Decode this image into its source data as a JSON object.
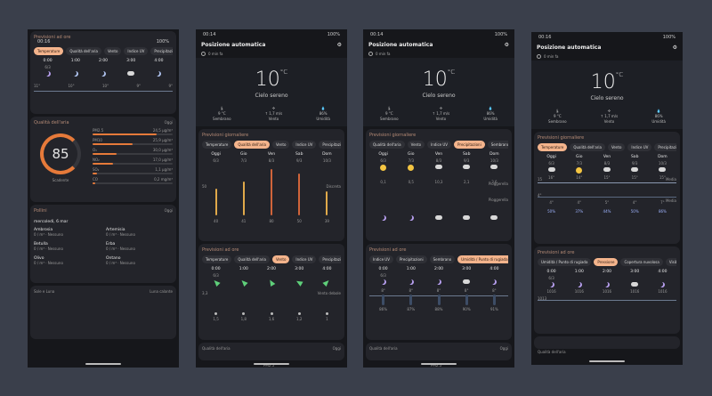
{
  "p1": {
    "status": {
      "time": "00:16",
      "battery": "100%"
    },
    "forecast_header": "Previsioni ad ore",
    "chips": [
      "Temperature",
      "Qualità dell'aria",
      "Vento",
      "Indice UV",
      "Precipitazi"
    ],
    "hours": [
      {
        "time": "0:00",
        "date": "6/3"
      },
      {
        "time": "1:00",
        "date": ""
      },
      {
        "time": "2:00",
        "date": ""
      },
      {
        "time": "3:00",
        "date": ""
      },
      {
        "time": "4:00",
        "date": ""
      }
    ],
    "temps": [
      "11°",
      "10°",
      "10°",
      "9°",
      "9°"
    ],
    "aqi_title": "Qualità dell'aria",
    "aqi_right": "Oggi",
    "aqi_value": "85",
    "aqi_label": "Scadente",
    "pollutants": [
      {
        "name": "PM2.5",
        "value": "24,5 μg/m³",
        "pct": 0.8
      },
      {
        "name": "PM10",
        "value": "25,9 μg/m³",
        "pct": 0.5
      },
      {
        "name": "O₃",
        "value": "30,0 μg/m³",
        "pct": 0.3
      },
      {
        "name": "NO₂",
        "value": "17,0 μg/m³",
        "pct": 0.25
      },
      {
        "name": "SO₂",
        "value": "1,1 μg/m³",
        "pct": 0.05
      },
      {
        "name": "CO",
        "value": "0,2 mg/m³",
        "pct": 0.03
      }
    ],
    "pollen_title": "Pollini",
    "pollen_right": "Oggi",
    "pollen_date": "mercoledì, 6 mar",
    "pollen": [
      {
        "name": "Ambrosia",
        "level": "0 / m³ · Nessuno"
      },
      {
        "name": "Artemisia",
        "level": "0 / m³ · Nessuno"
      },
      {
        "name": "Betulla",
        "level": "0 / m³ · Nessuno"
      },
      {
        "name": "Erba",
        "level": "0 / m³ · Nessuno"
      },
      {
        "name": "Olivo",
        "level": "0 / m³ · Nessuno"
      },
      {
        "name": "Ontano",
        "level": "0 / m³ · Nessuno"
      }
    ],
    "sun_title": "Sole e Luna",
    "sun_right": "Luna calante"
  },
  "p2": {
    "status": {
      "time": "00:14",
      "battery": "100%"
    },
    "location": "Posizione automatica",
    "ago": "0 min fa",
    "temp": "10",
    "unit": "°C",
    "condition": "Cielo sereno",
    "stats": [
      {
        "value": "9 °C",
        "label": "Sembrano"
      },
      {
        "value": "↑ 1,7 m/s",
        "label": "Vento"
      },
      {
        "value": "86%",
        "label": "Umidità"
      }
    ],
    "daily_header": "Previsioni giornaliere",
    "chips": [
      "Temperature",
      "Qualità dell'aria",
      "Vento",
      "Indice UV",
      "Precipitazi"
    ],
    "days": [
      {
        "d": "Oggi",
        "date": "6/3",
        "aqi": "40"
      },
      {
        "d": "Gio",
        "date": "7/3",
        "aqi": "41"
      },
      {
        "d": "Ven",
        "date": "8/3",
        "aqi": "80"
      },
      {
        "d": "Sab",
        "date": "9/3",
        "aqi": "50"
      },
      {
        "d": "Dom",
        "date": "10/3",
        "aqi": "39"
      }
    ],
    "bar_levels": [
      0.55,
      0.7,
      0.95,
      0.85,
      0.5
    ],
    "axis_left": "50",
    "axis_right": "Discreta",
    "hourly_header": "Previsioni ad ore",
    "chips2": [
      "Temperature",
      "Qualità dell'aria",
      "Vento",
      "Indice UV",
      "Precipitazi"
    ],
    "hours": [
      {
        "t": "0:00",
        "date": "6/3",
        "wind": "1,5"
      },
      {
        "t": "1:00",
        "date": "",
        "wind": "1,8"
      },
      {
        "t": "2:00",
        "date": "",
        "wind": "1,6"
      },
      {
        "t": "3:00",
        "date": "",
        "wind": "1,2"
      },
      {
        "t": "4:00",
        "date": "",
        "wind": "1"
      }
    ],
    "wind_left": "3,3",
    "wind_right": "Vento debole",
    "footer": "Qualità dell'aria",
    "footer_right": "Oggi",
    "footer_mid": "PM2.5"
  },
  "p3": {
    "status": {
      "time": "00:14",
      "battery": "100%"
    },
    "location": "Posizione automatica",
    "ago": "0 min fa",
    "temp": "10",
    "unit": "°C",
    "condition": "Cielo sereno",
    "stats": [
      {
        "value": "9 °C",
        "label": "Sembrano"
      },
      {
        "value": "↑ 1,7 m/s",
        "label": "Vento"
      },
      {
        "value": "86%",
        "label": "Umidità"
      }
    ],
    "daily_header": "Previsioni giornaliere",
    "chips": [
      "Qualità dell'aria",
      "Vento",
      "Indice UV",
      "Precipitazioni",
      "Sembrano"
    ],
    "days": [
      {
        "d": "Oggi",
        "date": "6/3",
        "mm": "0,1"
      },
      {
        "d": "Gio",
        "date": "7/3",
        "mm": "0,5"
      },
      {
        "d": "Ven",
        "date": "8/3",
        "mm": "10,3"
      },
      {
        "d": "Sab",
        "date": "9/3",
        "mm": "2,1"
      },
      {
        "d": "Dom",
        "date": "10/3",
        "mm": "3,6"
      }
    ],
    "rain_right_top": "Pioggerella",
    "rain_right_bottom": "Pioggerella",
    "hourly_header": "Previsioni ad ore",
    "chips2": [
      "Indice UV",
      "Precipitazioni",
      "Sembrano",
      "Umidità / Punto di rugiada"
    ],
    "hours": [
      {
        "t": "0:00",
        "date": "6/3",
        "hum": "86%",
        "dew": "8°"
      },
      {
        "t": "1:00",
        "date": "",
        "hum": "87%",
        "dew": "8°"
      },
      {
        "t": "2:00",
        "date": "",
        "hum": "88%",
        "dew": "8°"
      },
      {
        "t": "3:00",
        "date": "",
        "hum": "90%",
        "dew": "8°"
      },
      {
        "t": "4:00",
        "date": "",
        "hum": "91%",
        "dew": "8°"
      }
    ],
    "footer_mid": "PM2.5",
    "footer": "Qualità dell'aria",
    "footer_right": "Oggi"
  },
  "p4": {
    "status": {
      "time": "00:16",
      "battery": "100%"
    },
    "location": "Posizione automatica",
    "ago": "0 min fa",
    "temp": "10",
    "unit": "°C",
    "condition": "Cielo sereno",
    "stats": [
      {
        "value": "9 °C",
        "label": "Sembrano"
      },
      {
        "value": "↑ 1,7 m/s",
        "label": "Vento"
      },
      {
        "value": "86%",
        "label": "Umidità"
      }
    ],
    "daily_header": "Previsioni giornaliere",
    "chips": [
      "Temperature",
      "Qualità dell'aria",
      "Vento",
      "Indice UV",
      "Precipitazi"
    ],
    "days": [
      {
        "d": "Oggi",
        "date": "6/3",
        "hi": "16°",
        "lo": "4°",
        "pct": "50%"
      },
      {
        "d": "Gio",
        "date": "7/3",
        "hi": "14°",
        "lo": "4°",
        "pct": "37%"
      },
      {
        "d": "Ven",
        "date": "8/3",
        "hi": "15°",
        "lo": "5°",
        "pct": "44%"
      },
      {
        "d": "Sab",
        "date": "9/3",
        "hi": "15°",
        "lo": "4°",
        "pct": "50%"
      },
      {
        "d": "Dom",
        "date": "10/3",
        "hi": "15°",
        "lo": "7°",
        "pct": "86%"
      }
    ],
    "hi_left": "15",
    "lo_left": "4°",
    "hi_right": "Media",
    "lo_right": "Media",
    "hourly_header": "Previsioni ad ore",
    "chips2": [
      "Umidità / Punto di rugiada",
      "Pressione",
      "Copertura nuvolosa",
      "Visibilità"
    ],
    "hours": [
      {
        "t": "0:00",
        "date": "6/3",
        "p": "1016"
      },
      {
        "t": "1:00",
        "date": "",
        "p": "1016"
      },
      {
        "t": "2:00",
        "date": "",
        "p": "1016"
      },
      {
        "t": "3:00",
        "date": "",
        "p": "1016"
      },
      {
        "t": "4:00",
        "date": "",
        "p": "1016"
      }
    ],
    "p_left": "1013",
    "footer": "Qualità dell'aria"
  }
}
